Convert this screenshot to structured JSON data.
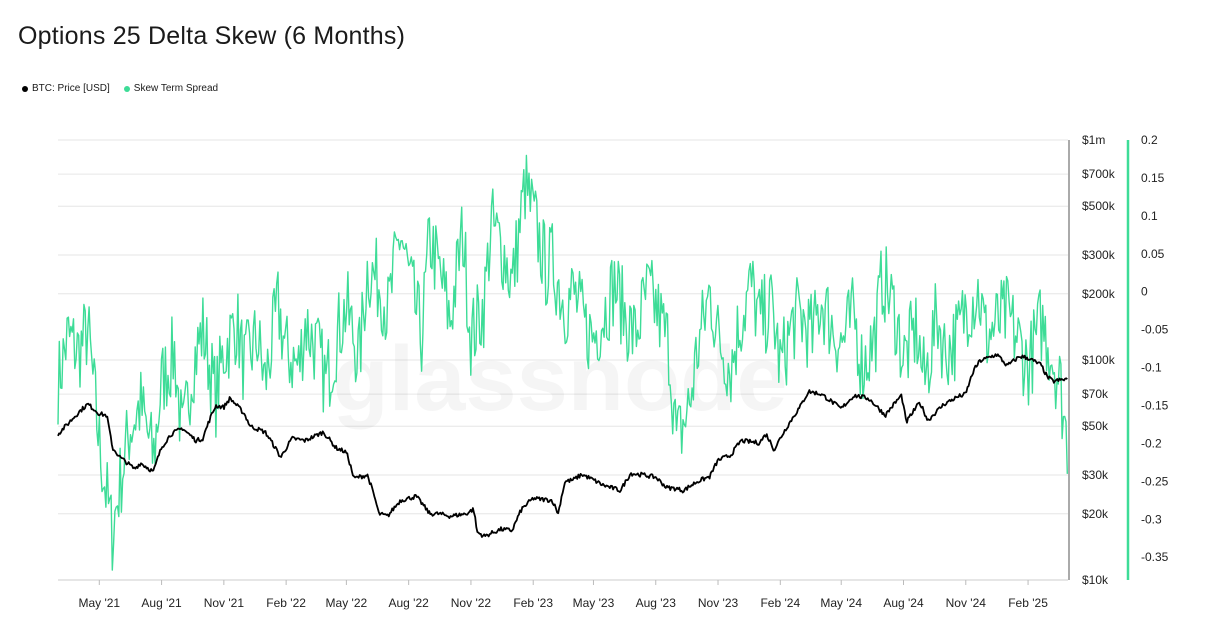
{
  "title": "Options 25 Delta Skew (6 Months)",
  "watermark": "glassnode",
  "legend": [
    {
      "label": "BTC: Price [USD]",
      "color": "#000000"
    },
    {
      "label": "Skew Term Spread",
      "color": "#3ddc97"
    }
  ],
  "colors": {
    "price": "#000000",
    "skew": "#3ddc97",
    "grid": "#e6e6e6",
    "axis": "#333333"
  },
  "chart_data": {
    "type": "line",
    "title": "Options 25 Delta Skew (6 Months)",
    "grid": true,
    "legend_position": "top-left",
    "x_ticks": [
      "May '21",
      "Aug '21",
      "Nov '21",
      "Feb '22",
      "May '22",
      "Aug '22",
      "Nov '22",
      "Feb '23",
      "May '23",
      "Aug '23",
      "Nov '23",
      "Feb '24",
      "May '24",
      "Aug '24",
      "Nov '24",
      "Feb '25"
    ],
    "x_range": [
      "2021-03-01",
      "2025-04-01"
    ],
    "y_left": {
      "scale": "log",
      "range": [
        10000,
        1000000
      ],
      "ticks": [
        {
          "value": 1000000,
          "label": "$1m"
        },
        {
          "value": 700000,
          "label": "$700k"
        },
        {
          "value": 500000,
          "label": "$500k"
        },
        {
          "value": 300000,
          "label": "$300k"
        },
        {
          "value": 200000,
          "label": "$200k"
        },
        {
          "value": 100000,
          "label": "$100k"
        },
        {
          "value": 70000,
          "label": "$70k"
        },
        {
          "value": 50000,
          "label": "$50k"
        },
        {
          "value": 30000,
          "label": "$30k"
        },
        {
          "value": 20000,
          "label": "$20k"
        },
        {
          "value": 10000,
          "label": "$10k"
        }
      ]
    },
    "y_right": {
      "scale": "linear",
      "range": [
        -0.38,
        0.2
      ],
      "ticks": [
        {
          "value": 0.2,
          "label": "0.2"
        },
        {
          "value": 0.15,
          "label": "0.15"
        },
        {
          "value": 0.1,
          "label": "0.1"
        },
        {
          "value": 0.05,
          "label": "0.05"
        },
        {
          "value": 0,
          "label": "0"
        },
        {
          "value": -0.05,
          "label": "-0.05"
        },
        {
          "value": -0.1,
          "label": "-0.1"
        },
        {
          "value": -0.15,
          "label": "-0.15"
        },
        {
          "value": -0.2,
          "label": "-0.2"
        },
        {
          "value": -0.25,
          "label": "-0.25"
        },
        {
          "value": -0.3,
          "label": "-0.3"
        },
        {
          "value": -0.35,
          "label": "-0.35"
        }
      ]
    },
    "series": [
      {
        "name": "BTC: Price [USD]",
        "axis": "left",
        "x": [
          "2021-03-01",
          "2021-03-15",
          "2021-04-01",
          "2021-04-14",
          "2021-05-01",
          "2021-05-12",
          "2021-05-20",
          "2021-06-01",
          "2021-06-22",
          "2021-07-01",
          "2021-07-20",
          "2021-08-01",
          "2021-08-15",
          "2021-09-01",
          "2021-09-07",
          "2021-09-21",
          "2021-10-01",
          "2021-10-20",
          "2021-11-01",
          "2021-11-10",
          "2021-12-01",
          "2021-12-10",
          "2022-01-01",
          "2022-01-24",
          "2022-02-10",
          "2022-03-01",
          "2022-03-28",
          "2022-04-15",
          "2022-05-01",
          "2022-05-12",
          "2022-06-01",
          "2022-06-18",
          "2022-07-01",
          "2022-07-20",
          "2022-08-12",
          "2022-09-01",
          "2022-09-15",
          "2022-10-01",
          "2022-10-25",
          "2022-11-05",
          "2022-11-10",
          "2022-11-21",
          "2022-12-15",
          "2023-01-01",
          "2023-01-15",
          "2023-02-01",
          "2023-03-01",
          "2023-03-10",
          "2023-03-20",
          "2023-04-01",
          "2023-04-14",
          "2023-05-01",
          "2023-05-15",
          "2023-06-10",
          "2023-06-25",
          "2023-07-15",
          "2023-08-01",
          "2023-08-17",
          "2023-09-01",
          "2023-09-11",
          "2023-10-01",
          "2023-10-20",
          "2023-11-01",
          "2023-11-20",
          "2023-12-05",
          "2024-01-01",
          "2024-01-11",
          "2024-01-23",
          "2024-02-15",
          "2024-03-01",
          "2024-03-14",
          "2024-04-01",
          "2024-05-01",
          "2024-05-20",
          "2024-06-10",
          "2024-07-05",
          "2024-07-29",
          "2024-08-05",
          "2024-08-25",
          "2024-09-06",
          "2024-09-30",
          "2024-10-20",
          "2024-11-01",
          "2024-11-13",
          "2024-11-22",
          "2024-12-17",
          "2025-01-01",
          "2025-01-20",
          "2025-02-01",
          "2025-02-20",
          "2025-03-01",
          "2025-03-10",
          "2025-03-31"
        ],
        "values": [
          46000,
          51000,
          58000,
          63000,
          57000,
          56000,
          40000,
          36000,
          32000,
          34000,
          31000,
          40000,
          46000,
          49000,
          47000,
          43000,
          44000,
          62000,
          61000,
          67000,
          57000,
          50000,
          47000,
          36000,
          44000,
          43000,
          47000,
          40000,
          38000,
          29000,
          30000,
          20000,
          19500,
          23000,
          24000,
          20000,
          20000,
          19500,
          20000,
          21000,
          16500,
          15800,
          17000,
          16800,
          21000,
          23500,
          23000,
          20000,
          28000,
          28500,
          30200,
          28500,
          27000,
          25500,
          30500,
          30000,
          29300,
          26300,
          26000,
          25500,
          28000,
          29500,
          35000,
          37000,
          43000,
          42000,
          46000,
          39000,
          52000,
          61000,
          72000,
          70000,
          60000,
          69000,
          67000,
          56000,
          69000,
          52000,
          64000,
          53000,
          63000,
          68000,
          70000,
          90000,
          99000,
          106000,
          94000,
          104000,
          102000,
          95000,
          84000,
          80000,
          82000
        ]
      },
      {
        "name": "Skew Term Spread",
        "axis": "right",
        "x": [
          "2021-03-01",
          "2021-03-15",
          "2021-04-01",
          "2021-04-14",
          "2021-05-01",
          "2021-05-20",
          "2021-06-01",
          "2021-06-15",
          "2021-07-01",
          "2021-07-20",
          "2021-08-01",
          "2021-08-20",
          "2021-09-01",
          "2021-09-15",
          "2021-10-01",
          "2021-10-20",
          "2021-11-01",
          "2021-11-20",
          "2021-12-01",
          "2021-12-20",
          "2022-01-01",
          "2022-01-20",
          "2022-02-01",
          "2022-02-20",
          "2022-03-01",
          "2022-03-20",
          "2022-04-01",
          "2022-04-20",
          "2022-05-01",
          "2022-05-20",
          "2022-06-01",
          "2022-06-20",
          "2022-07-01",
          "2022-07-20",
          "2022-08-01",
          "2022-08-20",
          "2022-09-01",
          "2022-09-20",
          "2022-10-01",
          "2022-10-20",
          "2022-11-01",
          "2022-11-20",
          "2022-12-01",
          "2022-12-20",
          "2023-01-01",
          "2023-01-20",
          "2023-02-01",
          "2023-02-20",
          "2023-03-01",
          "2023-03-20",
          "2023-04-01",
          "2023-04-20",
          "2023-05-01",
          "2023-05-20",
          "2023-06-01",
          "2023-06-20",
          "2023-07-01",
          "2023-07-20",
          "2023-08-01",
          "2023-08-20",
          "2023-09-01",
          "2023-09-20",
          "2023-10-01",
          "2023-10-20",
          "2023-11-01",
          "2023-11-20",
          "2023-12-01",
          "2023-12-20",
          "2024-01-01",
          "2024-01-20",
          "2024-02-01",
          "2024-02-20",
          "2024-03-01",
          "2024-03-20",
          "2024-04-01",
          "2024-04-20",
          "2024-05-01",
          "2024-05-20",
          "2024-06-01",
          "2024-06-20",
          "2024-07-01",
          "2024-07-20",
          "2024-08-01",
          "2024-08-20",
          "2024-09-01",
          "2024-09-20",
          "2024-10-01",
          "2024-10-20",
          "2024-11-01",
          "2024-11-20",
          "2024-12-01",
          "2024-12-20",
          "2025-01-01",
          "2025-01-20",
          "2025-02-01",
          "2025-02-20",
          "2025-03-01",
          "2025-03-20",
          "2025-03-31"
        ],
        "values": [
          -0.12,
          -0.06,
          -0.08,
          -0.05,
          -0.2,
          -0.32,
          -0.25,
          -0.18,
          -0.15,
          -0.22,
          -0.12,
          -0.08,
          -0.2,
          -0.1,
          -0.05,
          -0.14,
          -0.08,
          -0.04,
          -0.1,
          -0.06,
          -0.12,
          -0.02,
          -0.08,
          -0.1,
          -0.04,
          -0.08,
          -0.12,
          -0.05,
          -0.02,
          -0.09,
          0.03,
          0.01,
          -0.03,
          0.08,
          0.02,
          -0.06,
          0.07,
          0.01,
          -0.04,
          0.08,
          -0.06,
          -0.02,
          0.09,
          0.05,
          0.01,
          0.14,
          0.1,
          0.03,
          0.04,
          -0.02,
          0.0,
          -0.05,
          -0.06,
          -0.02,
          0.01,
          -0.04,
          -0.06,
          0.0,
          -0.02,
          -0.07,
          -0.2,
          -0.15,
          -0.08,
          0.0,
          -0.06,
          -0.1,
          -0.05,
          0.01,
          -0.04,
          -0.02,
          -0.1,
          -0.04,
          -0.03,
          -0.06,
          -0.01,
          -0.05,
          -0.07,
          -0.03,
          -0.1,
          -0.06,
          0.02,
          -0.03,
          -0.09,
          -0.05,
          -0.12,
          -0.03,
          -0.08,
          -0.06,
          -0.02,
          0.0,
          -0.06,
          -0.04,
          -0.03,
          -0.07,
          -0.1,
          -0.04,
          -0.06,
          -0.12,
          -0.2
        ]
      }
    ]
  }
}
